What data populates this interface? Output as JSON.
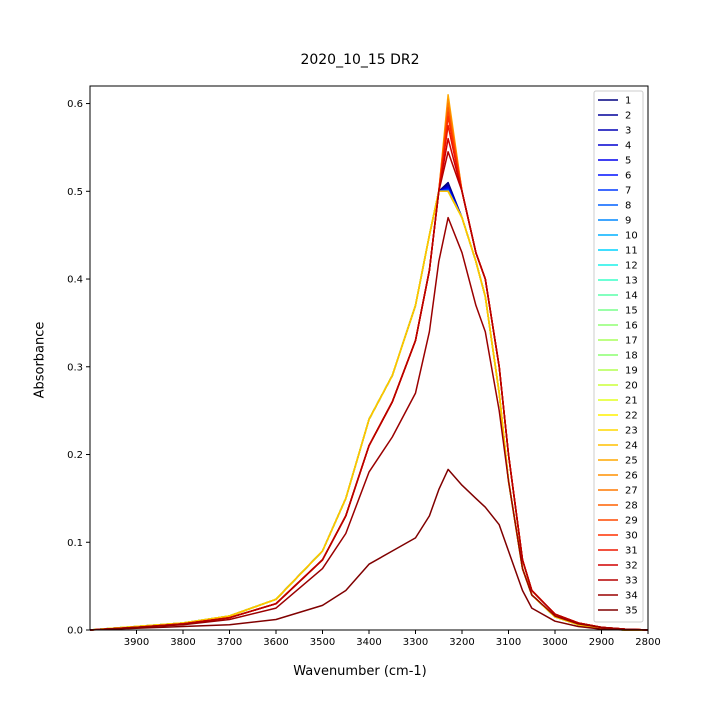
{
  "chart_data": {
    "type": "line",
    "title": "2020_10_15 DR2",
    "xlabel": "Wavenumber (cm-1)",
    "ylabel": "Absorbance",
    "xlim": [
      4000,
      2800
    ],
    "x_inverted": true,
    "ylim": [
      0,
      0.62
    ],
    "x_ticks": [
      3900,
      3800,
      3700,
      3600,
      3500,
      3400,
      3300,
      3200,
      3100,
      3000,
      2900,
      2800
    ],
    "y_ticks": [
      0.0,
      0.1,
      0.2,
      0.3,
      0.4,
      0.5,
      0.6
    ],
    "y_tick_labels": [
      "0.0",
      "0.1",
      "0.2",
      "0.3",
      "0.4",
      "0.5",
      "0.6"
    ],
    "grid": false,
    "legend_position": "top-right",
    "colormap": "jet",
    "x": [
      4000,
      3900,
      3800,
      3700,
      3600,
      3500,
      3450,
      3400,
      3350,
      3300,
      3270,
      3250,
      3230,
      3200,
      3170,
      3150,
      3120,
      3100,
      3070,
      3050,
      3000,
      2950,
      2900,
      2850,
      2800
    ],
    "series": [
      {
        "name": "1",
        "color": "#000080",
        "values": [
          0.0,
          0.004,
          0.008,
          0.016,
          0.035,
          0.09,
          0.15,
          0.24,
          0.29,
          0.37,
          0.45,
          0.5,
          0.51,
          0.47,
          0.42,
          0.38,
          0.27,
          0.17,
          0.07,
          0.04,
          0.015,
          0.006,
          0.002,
          0.0,
          0.0
        ]
      },
      {
        "name": "2",
        "color": "#00009a",
        "values": [
          0.0,
          0.004,
          0.008,
          0.016,
          0.035,
          0.09,
          0.15,
          0.24,
          0.29,
          0.37,
          0.45,
          0.5,
          0.508,
          0.47,
          0.42,
          0.38,
          0.27,
          0.17,
          0.07,
          0.04,
          0.015,
          0.006,
          0.002,
          0.0,
          0.0
        ]
      },
      {
        "name": "3",
        "color": "#0000b6",
        "values": [
          0.0,
          0.004,
          0.008,
          0.016,
          0.035,
          0.09,
          0.15,
          0.24,
          0.29,
          0.37,
          0.45,
          0.5,
          0.506,
          0.47,
          0.42,
          0.38,
          0.27,
          0.17,
          0.07,
          0.04,
          0.015,
          0.006,
          0.002,
          0.0,
          0.0
        ]
      },
      {
        "name": "4",
        "color": "#0000d1",
        "values": [
          0.0,
          0.004,
          0.008,
          0.016,
          0.035,
          0.09,
          0.15,
          0.24,
          0.29,
          0.37,
          0.45,
          0.5,
          0.505,
          0.47,
          0.42,
          0.38,
          0.27,
          0.17,
          0.07,
          0.04,
          0.015,
          0.006,
          0.002,
          0.0,
          0.0
        ]
      },
      {
        "name": "5",
        "color": "#0000ed",
        "values": [
          0.0,
          0.004,
          0.008,
          0.016,
          0.035,
          0.09,
          0.15,
          0.24,
          0.29,
          0.37,
          0.45,
          0.5,
          0.504,
          0.47,
          0.42,
          0.38,
          0.27,
          0.17,
          0.07,
          0.04,
          0.015,
          0.006,
          0.002,
          0.0,
          0.0
        ]
      },
      {
        "name": "6",
        "color": "#0010ff",
        "values": [
          0.0,
          0.004,
          0.008,
          0.016,
          0.035,
          0.09,
          0.15,
          0.24,
          0.29,
          0.37,
          0.45,
          0.5,
          0.503,
          0.47,
          0.42,
          0.38,
          0.27,
          0.17,
          0.07,
          0.04,
          0.015,
          0.006,
          0.002,
          0.0,
          0.0
        ]
      },
      {
        "name": "7",
        "color": "#0038ff",
        "values": [
          0.0,
          0.004,
          0.008,
          0.016,
          0.035,
          0.09,
          0.15,
          0.24,
          0.29,
          0.37,
          0.45,
          0.5,
          0.502,
          0.47,
          0.42,
          0.38,
          0.27,
          0.17,
          0.07,
          0.04,
          0.015,
          0.006,
          0.002,
          0.0,
          0.0
        ]
      },
      {
        "name": "8",
        "color": "#0060ff",
        "values": [
          0.0,
          0.004,
          0.008,
          0.016,
          0.035,
          0.09,
          0.15,
          0.24,
          0.29,
          0.37,
          0.45,
          0.5,
          0.501,
          0.47,
          0.42,
          0.38,
          0.27,
          0.17,
          0.07,
          0.04,
          0.015,
          0.006,
          0.002,
          0.0,
          0.0
        ]
      },
      {
        "name": "9",
        "color": "#0088ff",
        "values": [
          0.0,
          0.004,
          0.008,
          0.016,
          0.035,
          0.09,
          0.15,
          0.24,
          0.29,
          0.37,
          0.45,
          0.5,
          0.5,
          0.47,
          0.42,
          0.38,
          0.27,
          0.17,
          0.07,
          0.04,
          0.015,
          0.006,
          0.002,
          0.0,
          0.0
        ]
      },
      {
        "name": "10",
        "color": "#00b0ff",
        "values": [
          0.0,
          0.004,
          0.008,
          0.016,
          0.035,
          0.09,
          0.15,
          0.24,
          0.29,
          0.37,
          0.45,
          0.5,
          0.5,
          0.47,
          0.42,
          0.38,
          0.27,
          0.17,
          0.07,
          0.04,
          0.015,
          0.006,
          0.002,
          0.0,
          0.0
        ]
      },
      {
        "name": "11",
        "color": "#00d4ff",
        "values": [
          0.0,
          0.004,
          0.008,
          0.016,
          0.035,
          0.09,
          0.15,
          0.24,
          0.29,
          0.37,
          0.45,
          0.5,
          0.5,
          0.47,
          0.42,
          0.38,
          0.27,
          0.17,
          0.07,
          0.04,
          0.015,
          0.006,
          0.002,
          0.0,
          0.0
        ]
      },
      {
        "name": "12",
        "color": "#1cf0e8",
        "values": [
          0.0,
          0.004,
          0.008,
          0.016,
          0.035,
          0.09,
          0.15,
          0.24,
          0.29,
          0.37,
          0.45,
          0.5,
          0.5,
          0.47,
          0.42,
          0.38,
          0.27,
          0.17,
          0.07,
          0.04,
          0.015,
          0.006,
          0.002,
          0.0,
          0.0
        ]
      },
      {
        "name": "13",
        "color": "#3cffc8",
        "values": [
          0.0,
          0.004,
          0.008,
          0.016,
          0.035,
          0.09,
          0.15,
          0.24,
          0.29,
          0.37,
          0.45,
          0.5,
          0.5,
          0.47,
          0.42,
          0.38,
          0.27,
          0.17,
          0.07,
          0.04,
          0.015,
          0.006,
          0.002,
          0.0,
          0.0
        ]
      },
      {
        "name": "14",
        "color": "#5affaa",
        "values": [
          0.0,
          0.004,
          0.008,
          0.016,
          0.035,
          0.09,
          0.15,
          0.24,
          0.29,
          0.37,
          0.45,
          0.5,
          0.5,
          0.47,
          0.42,
          0.38,
          0.27,
          0.17,
          0.07,
          0.04,
          0.015,
          0.006,
          0.002,
          0.0,
          0.0
        ]
      },
      {
        "name": "15",
        "color": "#78ff8c",
        "values": [
          0.0,
          0.004,
          0.008,
          0.016,
          0.035,
          0.09,
          0.15,
          0.24,
          0.29,
          0.37,
          0.45,
          0.5,
          0.5,
          0.47,
          0.42,
          0.38,
          0.27,
          0.17,
          0.07,
          0.04,
          0.015,
          0.006,
          0.002,
          0.0,
          0.0
        ]
      },
      {
        "name": "16",
        "color": "#90ff74",
        "values": [
          0.0,
          0.004,
          0.008,
          0.016,
          0.035,
          0.09,
          0.15,
          0.24,
          0.29,
          0.37,
          0.45,
          0.5,
          0.5,
          0.47,
          0.42,
          0.38,
          0.27,
          0.17,
          0.07,
          0.04,
          0.015,
          0.006,
          0.002,
          0.0,
          0.0
        ]
      },
      {
        "name": "17",
        "color": "#a8ff5c",
        "values": [
          0.0,
          0.004,
          0.008,
          0.016,
          0.035,
          0.09,
          0.15,
          0.24,
          0.29,
          0.37,
          0.45,
          0.5,
          0.5,
          0.47,
          0.42,
          0.38,
          0.27,
          0.17,
          0.07,
          0.04,
          0.015,
          0.006,
          0.002,
          0.0,
          0.0
        ]
      },
      {
        "name": "18",
        "color": "#8cff70",
        "values": [
          0.0,
          0.004,
          0.008,
          0.016,
          0.035,
          0.09,
          0.15,
          0.24,
          0.29,
          0.37,
          0.45,
          0.5,
          0.5,
          0.47,
          0.42,
          0.38,
          0.27,
          0.17,
          0.07,
          0.04,
          0.015,
          0.006,
          0.002,
          0.0,
          0.0
        ]
      },
      {
        "name": "19",
        "color": "#b4ff50",
        "values": [
          0.0,
          0.004,
          0.008,
          0.016,
          0.035,
          0.09,
          0.15,
          0.24,
          0.29,
          0.37,
          0.45,
          0.5,
          0.5,
          0.47,
          0.42,
          0.38,
          0.27,
          0.17,
          0.07,
          0.04,
          0.015,
          0.006,
          0.002,
          0.0,
          0.0
        ]
      },
      {
        "name": "20",
        "color": "#ccff38",
        "values": [
          0.0,
          0.004,
          0.008,
          0.016,
          0.035,
          0.09,
          0.15,
          0.24,
          0.29,
          0.37,
          0.45,
          0.5,
          0.5,
          0.47,
          0.42,
          0.38,
          0.27,
          0.17,
          0.07,
          0.04,
          0.015,
          0.006,
          0.002,
          0.0,
          0.0
        ]
      },
      {
        "name": "21",
        "color": "#e4ff20",
        "values": [
          0.0,
          0.004,
          0.008,
          0.016,
          0.035,
          0.09,
          0.15,
          0.24,
          0.29,
          0.37,
          0.45,
          0.5,
          0.5,
          0.47,
          0.42,
          0.38,
          0.27,
          0.17,
          0.07,
          0.04,
          0.015,
          0.006,
          0.002,
          0.0,
          0.0
        ]
      },
      {
        "name": "22",
        "color": "#fff000",
        "values": [
          0.0,
          0.004,
          0.008,
          0.016,
          0.035,
          0.09,
          0.15,
          0.24,
          0.29,
          0.37,
          0.45,
          0.5,
          0.5,
          0.47,
          0.42,
          0.38,
          0.27,
          0.17,
          0.07,
          0.04,
          0.015,
          0.006,
          0.002,
          0.0,
          0.0
        ]
      },
      {
        "name": "23",
        "color": "#ffd800",
        "values": [
          0.0,
          0.004,
          0.008,
          0.016,
          0.035,
          0.09,
          0.15,
          0.24,
          0.29,
          0.37,
          0.45,
          0.5,
          0.5,
          0.47,
          0.42,
          0.38,
          0.27,
          0.17,
          0.07,
          0.04,
          0.015,
          0.006,
          0.002,
          0.0,
          0.0
        ]
      },
      {
        "name": "24",
        "color": "#ffc000",
        "values": [
          0.0,
          0.004,
          0.008,
          0.016,
          0.035,
          0.09,
          0.15,
          0.24,
          0.29,
          0.37,
          0.45,
          0.5,
          0.5,
          0.47,
          0.42,
          0.38,
          0.27,
          0.17,
          0.07,
          0.04,
          0.015,
          0.006,
          0.002,
          0.0,
          0.0
        ]
      },
      {
        "name": "25",
        "color": "#ffa800",
        "values": [
          0.0,
          0.003,
          0.007,
          0.014,
          0.03,
          0.08,
          0.13,
          0.21,
          0.26,
          0.33,
          0.41,
          0.5,
          0.61,
          0.5,
          0.43,
          0.4,
          0.3,
          0.2,
          0.08,
          0.045,
          0.018,
          0.008,
          0.003,
          0.001,
          0.0
        ]
      },
      {
        "name": "26",
        "color": "#ff9000",
        "values": [
          0.0,
          0.003,
          0.007,
          0.014,
          0.03,
          0.08,
          0.13,
          0.21,
          0.26,
          0.33,
          0.41,
          0.5,
          0.605,
          0.5,
          0.43,
          0.4,
          0.3,
          0.2,
          0.08,
          0.045,
          0.018,
          0.008,
          0.003,
          0.001,
          0.0
        ]
      },
      {
        "name": "27",
        "color": "#ff7800",
        "values": [
          0.0,
          0.003,
          0.007,
          0.014,
          0.03,
          0.08,
          0.13,
          0.21,
          0.26,
          0.33,
          0.41,
          0.5,
          0.6,
          0.5,
          0.43,
          0.4,
          0.3,
          0.2,
          0.08,
          0.045,
          0.018,
          0.008,
          0.003,
          0.001,
          0.0
        ]
      },
      {
        "name": "28",
        "color": "#ff6000",
        "values": [
          0.0,
          0.003,
          0.007,
          0.014,
          0.03,
          0.08,
          0.13,
          0.21,
          0.26,
          0.33,
          0.41,
          0.5,
          0.595,
          0.5,
          0.43,
          0.4,
          0.3,
          0.2,
          0.08,
          0.045,
          0.018,
          0.008,
          0.003,
          0.001,
          0.0
        ]
      },
      {
        "name": "29",
        "color": "#ff4800",
        "values": [
          0.0,
          0.003,
          0.007,
          0.014,
          0.03,
          0.08,
          0.13,
          0.21,
          0.26,
          0.33,
          0.41,
          0.5,
          0.59,
          0.5,
          0.43,
          0.4,
          0.3,
          0.2,
          0.08,
          0.045,
          0.018,
          0.008,
          0.003,
          0.001,
          0.0
        ]
      },
      {
        "name": "30",
        "color": "#ff3000",
        "values": [
          0.0,
          0.003,
          0.007,
          0.014,
          0.03,
          0.08,
          0.13,
          0.21,
          0.26,
          0.33,
          0.41,
          0.5,
          0.585,
          0.5,
          0.43,
          0.4,
          0.3,
          0.2,
          0.08,
          0.045,
          0.018,
          0.008,
          0.003,
          0.001,
          0.0
        ]
      },
      {
        "name": "31",
        "color": "#ed1800",
        "values": [
          0.0,
          0.003,
          0.007,
          0.014,
          0.03,
          0.08,
          0.13,
          0.21,
          0.26,
          0.33,
          0.41,
          0.5,
          0.575,
          0.5,
          0.43,
          0.4,
          0.3,
          0.2,
          0.08,
          0.045,
          0.018,
          0.008,
          0.003,
          0.001,
          0.0
        ]
      },
      {
        "name": "32",
        "color": "#d10000",
        "values": [
          0.0,
          0.003,
          0.007,
          0.014,
          0.03,
          0.08,
          0.13,
          0.21,
          0.26,
          0.33,
          0.41,
          0.5,
          0.56,
          0.5,
          0.43,
          0.4,
          0.3,
          0.2,
          0.08,
          0.045,
          0.018,
          0.008,
          0.003,
          0.001,
          0.0
        ]
      },
      {
        "name": "33",
        "color": "#b60000",
        "values": [
          0.0,
          0.003,
          0.007,
          0.014,
          0.03,
          0.08,
          0.13,
          0.21,
          0.26,
          0.33,
          0.41,
          0.5,
          0.545,
          0.5,
          0.43,
          0.4,
          0.3,
          0.2,
          0.08,
          0.045,
          0.018,
          0.008,
          0.003,
          0.001,
          0.0
        ]
      },
      {
        "name": "34",
        "color": "#9a0000",
        "values": [
          0.0,
          0.003,
          0.006,
          0.012,
          0.025,
          0.07,
          0.11,
          0.18,
          0.22,
          0.27,
          0.34,
          0.42,
          0.47,
          0.43,
          0.37,
          0.34,
          0.25,
          0.17,
          0.07,
          0.04,
          0.016,
          0.007,
          0.003,
          0.001,
          0.0
        ]
      },
      {
        "name": "35",
        "color": "#800000",
        "values": [
          0.0,
          0.002,
          0.004,
          0.006,
          0.012,
          0.028,
          0.045,
          0.075,
          0.09,
          0.105,
          0.13,
          0.16,
          0.183,
          0.165,
          0.15,
          0.14,
          0.12,
          0.09,
          0.045,
          0.025,
          0.01,
          0.004,
          0.001,
          0.0,
          0.0
        ]
      }
    ]
  }
}
